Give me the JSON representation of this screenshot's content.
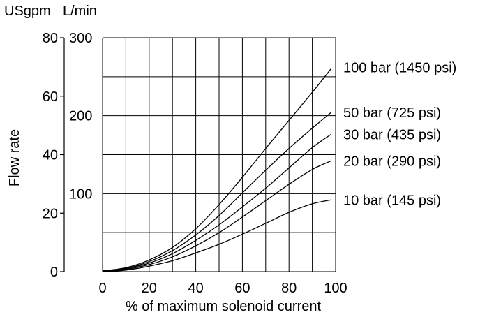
{
  "chart_data": {
    "type": "line",
    "title": "",
    "xlabel": "% of maximum solenoid current",
    "ylabel": "Flow rate",
    "y_unit_left": "USgpm",
    "y_unit_right": "L/min",
    "xlim": [
      0,
      100
    ],
    "ylim_usgpm": [
      0,
      80
    ],
    "ylim_lmin": [
      0,
      300
    ],
    "x_ticks": [
      0,
      20,
      40,
      60,
      80,
      100
    ],
    "y_ticks_usgpm": [
      0,
      20,
      40,
      60,
      80
    ],
    "y_ticks_lmin": [
      100,
      200,
      300
    ],
    "grid": true,
    "legend": "curve labels at right end",
    "series": [
      {
        "name": "100 bar (1450 psi)",
        "x": [
          0,
          10,
          20,
          30,
          40,
          50,
          60,
          70,
          80,
          90,
          98
        ],
        "y_lmin": [
          1,
          5,
          15,
          31,
          55,
          86,
          121,
          158,
          194,
          230,
          260
        ]
      },
      {
        "name": "50 bar (725 psi)",
        "x": [
          0,
          10,
          20,
          30,
          40,
          50,
          60,
          70,
          80,
          90,
          98
        ],
        "y_lmin": [
          1,
          4,
          13,
          27,
          47,
          72,
          101,
          130,
          158,
          184,
          204
        ]
      },
      {
        "name": "30 bar (435 psi)",
        "x": [
          0,
          10,
          20,
          30,
          40,
          50,
          60,
          70,
          80,
          90,
          98
        ],
        "y_lmin": [
          1,
          4,
          11,
          23,
          40,
          60,
          83,
          107,
          133,
          159,
          176
        ]
      },
      {
        "name": "20 bar (290 psi)",
        "x": [
          0,
          10,
          20,
          30,
          40,
          50,
          60,
          70,
          80,
          90,
          98
        ],
        "y_lmin": [
          0,
          3,
          9,
          19,
          33,
          50,
          70,
          91,
          112,
          131,
          142
        ]
      },
      {
        "name": "10 bar (145 psi)",
        "x": [
          0,
          10,
          20,
          30,
          40,
          50,
          60,
          70,
          80,
          90,
          98
        ],
        "y_lmin": [
          0,
          2,
          7,
          14,
          24,
          35,
          48,
          62,
          76,
          87,
          92
        ]
      }
    ]
  }
}
